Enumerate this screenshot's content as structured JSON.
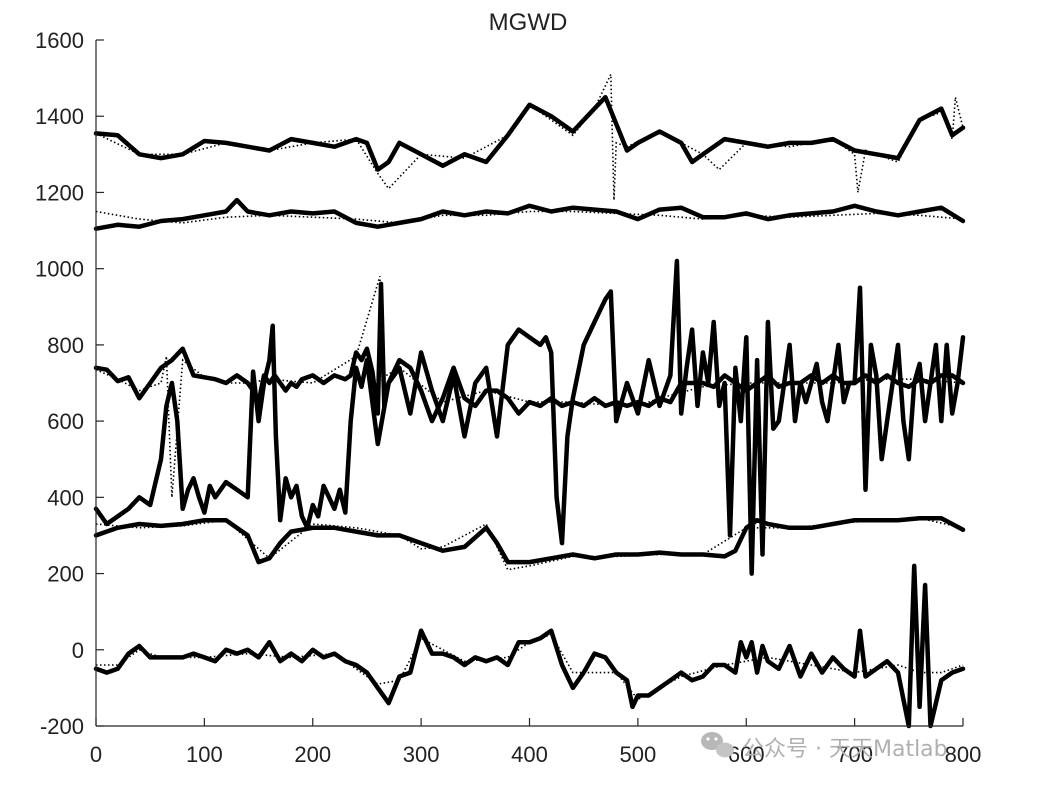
{
  "chart_data": {
    "type": "line",
    "title": "MGWD",
    "xlim": [
      0,
      800
    ],
    "ylim": [
      -200,
      1600
    ],
    "x_ticks": [
      0,
      100,
      200,
      300,
      400,
      500,
      600,
      700,
      800
    ],
    "y_ticks": [
      -200,
      0,
      200,
      400,
      600,
      800,
      1000,
      1200,
      1400,
      1600
    ],
    "grid": false,
    "legend": "none",
    "series": [
      {
        "style": "solid",
        "x": [
          0,
          20,
          40,
          60,
          80,
          100,
          120,
          140,
          160,
          180,
          200,
          220,
          240,
          250,
          260,
          270,
          280,
          300,
          320,
          340,
          360,
          380,
          400,
          420,
          440,
          460,
          470,
          480,
          490,
          500,
          520,
          540,
          550,
          560,
          580,
          600,
          620,
          640,
          660,
          680,
          700,
          720,
          740,
          760,
          780,
          790,
          800
        ],
        "values": [
          1355,
          1350,
          1300,
          1290,
          1300,
          1335,
          1330,
          1320,
          1310,
          1340,
          1330,
          1320,
          1340,
          1330,
          1260,
          1280,
          1330,
          1300,
          1270,
          1300,
          1280,
          1350,
          1430,
          1400,
          1360,
          1420,
          1450,
          1380,
          1310,
          1330,
          1360,
          1330,
          1280,
          1300,
          1340,
          1330,
          1320,
          1330,
          1330,
          1340,
          1310,
          1300,
          1290,
          1390,
          1420,
          1350,
          1370
        ]
      },
      {
        "style": "dotted",
        "x": [
          0,
          40,
          80,
          120,
          160,
          200,
          240,
          260,
          270,
          300,
          340,
          380,
          400,
          420,
          440,
          460,
          470,
          475,
          478,
          480,
          490,
          520,
          560,
          575,
          600,
          640,
          680,
          700,
          703,
          710,
          740,
          760,
          780,
          790,
          793,
          800
        ],
        "values": [
          1355,
          1300,
          1300,
          1330,
          1310,
          1330,
          1340,
          1250,
          1210,
          1300,
          1290,
          1350,
          1430,
          1390,
          1350,
          1420,
          1480,
          1510,
          1180,
          1330,
          1320,
          1360,
          1300,
          1260,
          1330,
          1320,
          1340,
          1300,
          1200,
          1310,
          1280,
          1390,
          1410,
          1340,
          1450,
          1370
        ]
      },
      {
        "style": "solid",
        "x": [
          0,
          20,
          40,
          60,
          80,
          100,
          120,
          130,
          140,
          160,
          180,
          200,
          220,
          240,
          260,
          280,
          300,
          320,
          340,
          360,
          380,
          400,
          420,
          440,
          460,
          480,
          500,
          520,
          540,
          560,
          580,
          600,
          620,
          640,
          660,
          680,
          700,
          720,
          740,
          760,
          780,
          800
        ],
        "values": [
          1105,
          1115,
          1110,
          1125,
          1130,
          1140,
          1150,
          1180,
          1150,
          1140,
          1150,
          1145,
          1150,
          1120,
          1110,
          1120,
          1130,
          1150,
          1140,
          1150,
          1145,
          1165,
          1150,
          1160,
          1155,
          1150,
          1130,
          1155,
          1160,
          1135,
          1135,
          1145,
          1130,
          1140,
          1145,
          1150,
          1165,
          1150,
          1140,
          1150,
          1160,
          1125
        ]
      },
      {
        "style": "dotted",
        "x": [
          0,
          40,
          80,
          120,
          160,
          200,
          240,
          280,
          320,
          360,
          400,
          440,
          480,
          520,
          560,
          600,
          640,
          680,
          720,
          760,
          800
        ],
        "values": [
          1150,
          1130,
          1120,
          1135,
          1140,
          1135,
          1130,
          1120,
          1140,
          1140,
          1150,
          1150,
          1145,
          1140,
          1130,
          1140,
          1135,
          1140,
          1145,
          1140,
          1130
        ]
      },
      {
        "style": "solid",
        "x": [
          0,
          10,
          20,
          30,
          40,
          50,
          60,
          70,
          80,
          90,
          100,
          110,
          120,
          130,
          140,
          145,
          150,
          155,
          160,
          165,
          170,
          175,
          180,
          185,
          190,
          200,
          210,
          220,
          230,
          235,
          240,
          245,
          250,
          255,
          260,
          263,
          266,
          270,
          280,
          290,
          300,
          310,
          320,
          330,
          340,
          350,
          360,
          370,
          380,
          390,
          400,
          410,
          420,
          430,
          440,
          450,
          460,
          470,
          480,
          490,
          500,
          510,
          520,
          530,
          540,
          550,
          560,
          570,
          580,
          590,
          600,
          610,
          620,
          630,
          640,
          650,
          660,
          670,
          680,
          690,
          700,
          710,
          720,
          730,
          740,
          750,
          760,
          770,
          780,
          790,
          800
        ],
        "values": [
          740,
          735,
          705,
          715,
          660,
          700,
          740,
          760,
          790,
          720,
          715,
          710,
          700,
          720,
          700,
          680,
          650,
          720,
          700,
          720,
          700,
          680,
          700,
          690,
          710,
          720,
          700,
          720,
          710,
          720,
          780,
          760,
          790,
          730,
          620,
          960,
          640,
          700,
          760,
          740,
          680,
          600,
          660,
          740,
          660,
          640,
          680,
          680,
          660,
          620,
          650,
          640,
          660,
          640,
          650,
          640,
          660,
          640,
          650,
          640,
          650,
          640,
          660,
          650,
          700,
          700,
          700,
          690,
          720,
          700,
          680,
          700,
          720,
          690,
          700,
          700,
          720,
          700,
          720,
          700,
          700,
          720,
          700,
          720,
          700,
          690,
          710,
          700,
          720,
          720,
          700
        ]
      },
      {
        "style": "dotted",
        "x": [
          0,
          20,
          40,
          60,
          65,
          70,
          80,
          100,
          120,
          140,
          160,
          200,
          240,
          262,
          264,
          268,
          280,
          320,
          360,
          400,
          440,
          480,
          500,
          520,
          560,
          600,
          640,
          680,
          720,
          760,
          800
        ],
        "values": [
          735,
          710,
          680,
          700,
          770,
          400,
          760,
          715,
          700,
          700,
          710,
          700,
          770,
          980,
          700,
          720,
          740,
          650,
          680,
          650,
          650,
          640,
          640,
          660,
          690,
          700,
          700,
          700,
          710,
          710,
          700
        ]
      },
      {
        "style": "solid",
        "x": [
          0,
          10,
          20,
          30,
          40,
          50,
          60,
          65,
          70,
          75,
          80,
          85,
          90,
          95,
          100,
          105,
          110,
          120,
          130,
          140,
          145,
          150,
          155,
          160,
          163,
          166,
          170,
          175,
          180,
          185,
          190,
          195,
          200,
          205,
          210,
          215,
          220,
          225,
          230,
          235,
          240,
          245,
          250,
          260,
          270,
          280,
          290,
          300,
          310,
          320,
          330,
          340,
          350,
          360,
          370,
          380,
          390,
          400,
          410,
          415,
          420,
          425,
          430,
          435,
          440,
          450,
          460,
          470,
          475,
          480,
          490,
          500,
          510,
          520,
          530,
          536,
          540,
          545,
          550,
          555,
          560,
          565,
          570,
          575,
          580,
          585,
          590,
          595,
          600,
          605,
          610,
          615,
          620,
          625,
          630,
          635,
          640,
          645,
          650,
          655,
          660,
          665,
          670,
          675,
          680,
          685,
          690,
          695,
          700,
          705,
          710,
          715,
          720,
          725,
          730,
          735,
          740,
          745,
          750,
          755,
          760,
          765,
          770,
          775,
          780,
          785,
          790,
          795,
          800
        ],
        "values": [
          370,
          330,
          350,
          370,
          400,
          380,
          500,
          640,
          700,
          600,
          370,
          420,
          450,
          400,
          360,
          430,
          400,
          440,
          420,
          400,
          730,
          600,
          700,
          760,
          850,
          560,
          340,
          450,
          400,
          430,
          350,
          320,
          380,
          350,
          430,
          400,
          370,
          420,
          360,
          600,
          740,
          690,
          760,
          540,
          700,
          740,
          620,
          780,
          680,
          600,
          720,
          560,
          700,
          740,
          560,
          800,
          840,
          820,
          800,
          820,
          780,
          400,
          280,
          560,
          660,
          800,
          860,
          920,
          940,
          600,
          700,
          620,
          760,
          640,
          720,
          1020,
          620,
          740,
          840,
          640,
          780,
          700,
          860,
          640,
          700,
          300,
          740,
          600,
          820,
          200,
          760,
          250,
          860,
          580,
          600,
          700,
          800,
          600,
          700,
          650,
          700,
          750,
          650,
          600,
          700,
          800,
          650,
          700,
          700,
          950,
          420,
          800,
          720,
          500,
          600,
          700,
          800,
          600,
          500,
          700,
          750,
          600,
          700,
          800,
          600,
          800,
          620,
          700,
          820
        ]
      },
      {
        "style": "solid",
        "x": [
          0,
          20,
          40,
          60,
          80,
          100,
          120,
          140,
          150,
          160,
          170,
          180,
          200,
          220,
          240,
          260,
          280,
          300,
          320,
          340,
          360,
          370,
          380,
          400,
          420,
          440,
          460,
          480,
          500,
          520,
          540,
          560,
          580,
          590,
          600,
          610,
          620,
          640,
          660,
          680,
          700,
          720,
          740,
          760,
          780,
          800
        ],
        "values": [
          300,
          320,
          330,
          325,
          330,
          340,
          340,
          300,
          230,
          240,
          280,
          310,
          320,
          320,
          310,
          300,
          300,
          280,
          260,
          270,
          320,
          280,
          230,
          230,
          240,
          250,
          240,
          250,
          250,
          255,
          250,
          250,
          245,
          260,
          320,
          340,
          330,
          320,
          320,
          330,
          340,
          340,
          340,
          345,
          345,
          315
        ]
      },
      {
        "style": "dotted",
        "x": [
          0,
          40,
          80,
          120,
          160,
          200,
          240,
          280,
          300,
          320,
          360,
          380,
          400,
          440,
          480,
          520,
          560,
          600,
          640,
          680,
          720,
          760,
          800
        ],
        "values": [
          330,
          320,
          325,
          340,
          240,
          330,
          320,
          300,
          265,
          270,
          330,
          210,
          220,
          245,
          245,
          250,
          250,
          320,
          320,
          330,
          340,
          345,
          320
        ]
      },
      {
        "style": "solid",
        "x": [
          0,
          10,
          20,
          30,
          40,
          50,
          60,
          70,
          80,
          90,
          100,
          110,
          120,
          130,
          140,
          150,
          160,
          170,
          180,
          190,
          200,
          210,
          220,
          230,
          240,
          250,
          260,
          270,
          280,
          290,
          300,
          310,
          320,
          330,
          340,
          350,
          360,
          370,
          380,
          390,
          400,
          410,
          420,
          430,
          440,
          450,
          460,
          470,
          480,
          490,
          495,
          500,
          510,
          520,
          530,
          540,
          550,
          560,
          570,
          580,
          590,
          595,
          600,
          605,
          610,
          615,
          620,
          630,
          640,
          650,
          660,
          670,
          680,
          690,
          700,
          705,
          710,
          720,
          730,
          740,
          750,
          755,
          760,
          765,
          770,
          780,
          790,
          800
        ],
        "values": [
          -50,
          -60,
          -50,
          -10,
          10,
          -20,
          -20,
          -20,
          -20,
          -10,
          -20,
          -30,
          0,
          -10,
          0,
          -20,
          20,
          -30,
          -10,
          -30,
          0,
          -20,
          -10,
          -30,
          -40,
          -60,
          -100,
          -140,
          -70,
          -60,
          50,
          -10,
          -10,
          -20,
          -40,
          -20,
          -30,
          -20,
          -40,
          20,
          20,
          30,
          50,
          -40,
          -100,
          -60,
          -10,
          -20,
          -60,
          -80,
          -150,
          -120,
          -120,
          -100,
          -80,
          -60,
          -80,
          -70,
          -40,
          -40,
          -60,
          20,
          -20,
          20,
          -60,
          10,
          -30,
          -50,
          10,
          -70,
          -10,
          -60,
          -20,
          -50,
          -70,
          50,
          -70,
          -50,
          -30,
          -60,
          -200,
          220,
          -150,
          170,
          -200,
          -80,
          -60,
          -50
        ]
      },
      {
        "style": "dotted",
        "x": [
          0,
          20,
          40,
          60,
          80,
          100,
          140,
          180,
          220,
          260,
          280,
          300,
          340,
          380,
          400,
          420,
          440,
          480,
          500,
          540,
          580,
          620,
          660,
          700,
          740,
          760,
          780,
          800
        ],
        "values": [
          -40,
          -40,
          0,
          -20,
          -20,
          -20,
          -10,
          -20,
          -10,
          -90,
          -80,
          30,
          -30,
          -20,
          20,
          40,
          -60,
          -60,
          -130,
          -70,
          -40,
          -20,
          -40,
          -60,
          -40,
          -60,
          -60,
          -40
        ]
      }
    ]
  },
  "watermark": {
    "icon": "wechat-icon",
    "text": "公众号 · 天天Matlab"
  }
}
